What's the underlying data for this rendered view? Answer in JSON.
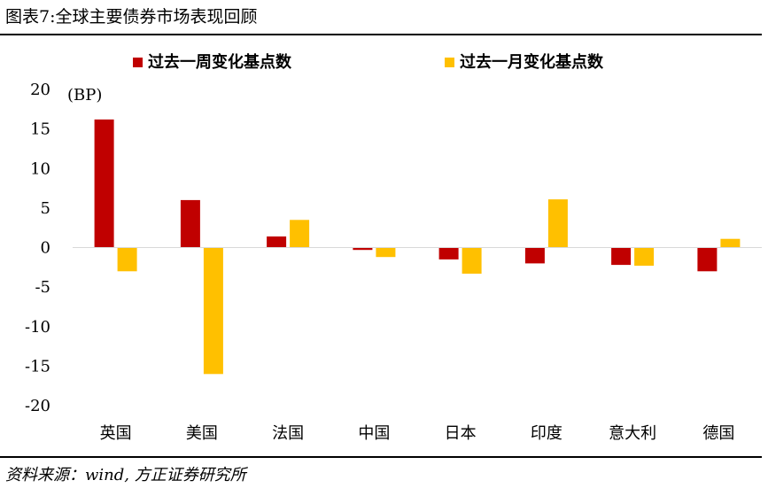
{
  "figure": {
    "title": "图表7:全球主要债券市场表现回顾",
    "source": "资料来源：wind, 方正证券研究所"
  },
  "chart_data": {
    "type": "bar",
    "unit_label": "(BP)",
    "categories": [
      "英国",
      "美国",
      "法国",
      "中国",
      "日本",
      "印度",
      "意大利",
      "德国"
    ],
    "series": [
      {
        "name": "过去一周变化基点数",
        "color": "#C00000",
        "values": [
          16.2,
          6.0,
          1.4,
          -0.3,
          -1.5,
          -2.0,
          -2.2,
          -3.0
        ]
      },
      {
        "name": "过去一月变化基点数",
        "color": "#FFC000",
        "values": [
          -3.0,
          -16.0,
          3.5,
          -1.2,
          -3.3,
          6.1,
          -2.3,
          1.1
        ]
      }
    ],
    "ylim": [
      -20,
      20
    ],
    "yticks": [
      20,
      15,
      10,
      5,
      0,
      -5,
      -10,
      -15,
      -20
    ],
    "grid": false,
    "legend_position": "top"
  }
}
